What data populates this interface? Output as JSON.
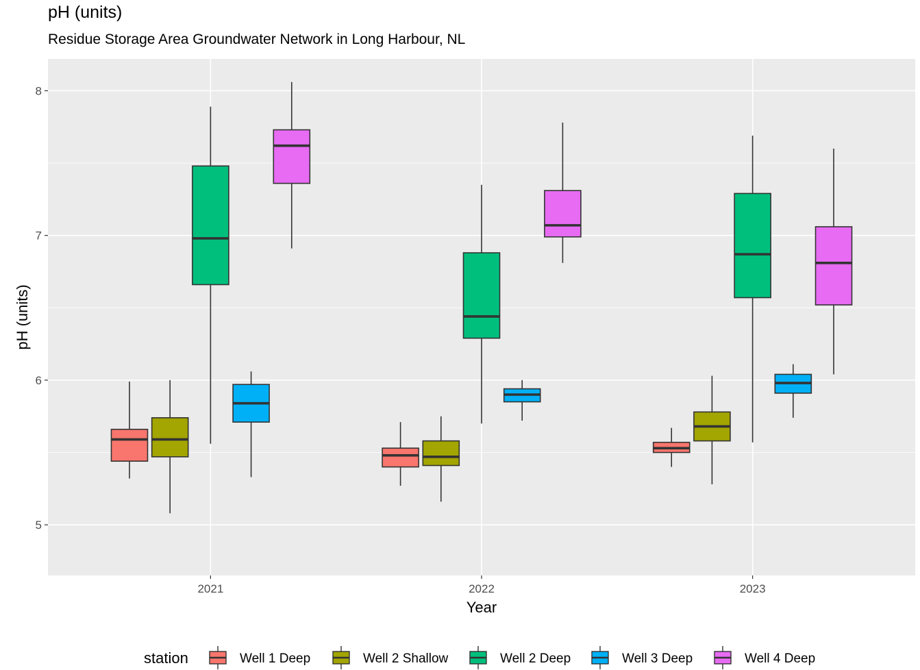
{
  "chart_data": {
    "type": "box",
    "title": "pH (units)",
    "subtitle": "Residue Storage Area Groundwater Network in Long Harbour, NL",
    "xlabel": "Year",
    "ylabel": "pH (units)",
    "ylim": [
      4.65,
      8.22
    ],
    "yticks": [
      5,
      6,
      7,
      8
    ],
    "grid": true,
    "legend_position": "bottom",
    "legend_title": "station",
    "categories": [
      "2021",
      "2022",
      "2023"
    ],
    "series": [
      {
        "name": "Well 1 Deep",
        "color": "#F8766D",
        "boxes": [
          {
            "min": 5.32,
            "q1": 5.44,
            "median": 5.59,
            "q3": 5.66,
            "max": 5.99
          },
          {
            "min": 5.27,
            "q1": 5.4,
            "median": 5.48,
            "q3": 5.53,
            "max": 5.71
          },
          {
            "min": 5.4,
            "q1": 5.5,
            "median": 5.53,
            "q3": 5.57,
            "max": 5.67
          }
        ]
      },
      {
        "name": "Well 2 Shallow",
        "color": "#A3A500",
        "boxes": [
          {
            "min": 5.08,
            "q1": 5.47,
            "median": 5.59,
            "q3": 5.74,
            "max": 6.0
          },
          {
            "min": 5.16,
            "q1": 5.41,
            "median": 5.47,
            "q3": 5.58,
            "max": 5.75
          },
          {
            "min": 5.28,
            "q1": 5.58,
            "median": 5.68,
            "q3": 5.78,
            "max": 6.03
          }
        ]
      },
      {
        "name": "Well 2 Deep",
        "color": "#00BF7D",
        "boxes": [
          {
            "min": 5.56,
            "q1": 6.66,
            "median": 6.98,
            "q3": 7.48,
            "max": 7.89
          },
          {
            "min": 5.7,
            "q1": 6.29,
            "median": 6.44,
            "q3": 6.88,
            "max": 7.35
          },
          {
            "min": 5.57,
            "q1": 6.57,
            "median": 6.87,
            "q3": 7.29,
            "max": 7.69
          }
        ]
      },
      {
        "name": "Well 3 Deep",
        "color": "#00B0F6",
        "boxes": [
          {
            "min": 5.33,
            "q1": 5.71,
            "median": 5.84,
            "q3": 5.97,
            "max": 6.06
          },
          {
            "min": 5.72,
            "q1": 5.85,
            "median": 5.9,
            "q3": 5.94,
            "max": 6.0
          },
          {
            "min": 5.74,
            "q1": 5.91,
            "median": 5.98,
            "q3": 6.04,
            "max": 6.11
          }
        ]
      },
      {
        "name": "Well 4 Deep",
        "color": "#E76BF3",
        "boxes": [
          {
            "min": 6.91,
            "q1": 7.36,
            "median": 7.62,
            "q3": 7.73,
            "max": 8.06
          },
          {
            "min": 6.81,
            "q1": 6.99,
            "median": 7.07,
            "q3": 7.31,
            "max": 7.78
          },
          {
            "min": 6.04,
            "q1": 6.52,
            "median": 6.81,
            "q3": 7.06,
            "max": 7.6
          }
        ]
      }
    ]
  }
}
